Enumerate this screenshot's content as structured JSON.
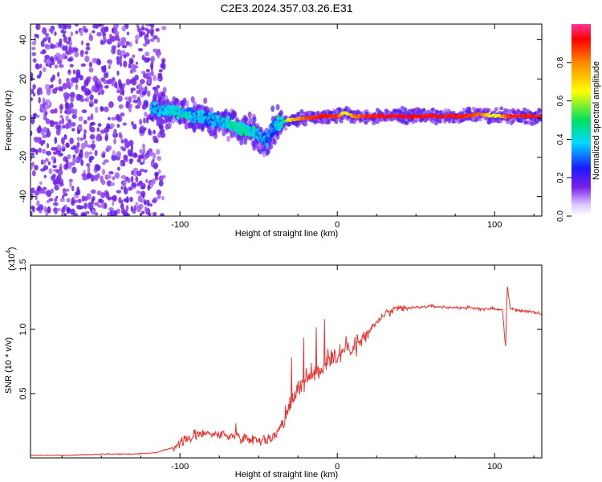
{
  "title": "C2E3.2024.357.03.26.E31",
  "chart_data": [
    {
      "type": "heatmap",
      "xlabel": "Height of straight line (km)",
      "ylabel": "Frequency (Hz)",
      "xlim": [
        -195,
        130
      ],
      "ylim": [
        -50,
        48
      ],
      "xticks": [
        -100,
        0,
        100
      ],
      "yticks": [
        -40,
        -20,
        0,
        20,
        40
      ],
      "colorbar": {
        "label": "Normalized spectral amplitude",
        "range": [
          0.0,
          1.0
        ],
        "ticks": [
          0.0,
          0.2,
          0.4,
          0.6,
          0.8
        ],
        "tick_labels": [
          "0.0",
          "0.2",
          "0.4",
          "0.6",
          "0.8"
        ]
      },
      "ridge": {
        "x": [
          -115,
          -100,
          -90,
          -80,
          -70,
          -60,
          -50,
          -45,
          -40,
          -35,
          -30,
          -20,
          -10,
          0,
          5,
          10,
          20,
          40,
          60,
          80,
          90,
          100,
          110,
          130
        ],
        "freq_hz": [
          5,
          3,
          1,
          -1,
          -3,
          -5,
          -9,
          -12,
          -4,
          -2,
          -1,
          0,
          1,
          1,
          3,
          1,
          1,
          1,
          1,
          1,
          2,
          1,
          1,
          1
        ],
        "amplitude": [
          0.35,
          0.4,
          0.35,
          0.35,
          0.4,
          0.45,
          0.35,
          0.3,
          0.35,
          0.4,
          0.7,
          0.85,
          0.9,
          0.9,
          0.6,
          0.8,
          0.9,
          0.92,
          0.9,
          0.9,
          0.85,
          0.6,
          0.9,
          0.9
        ]
      },
      "noise_region": {
        "x_range": [
          -195,
          -110
        ],
        "amplitude": 0.1
      }
    },
    {
      "type": "line",
      "xlabel": "Height of straight line (km)",
      "ylabel": "SNR (10 * v/v)",
      "y_scale_label": "(x10",
      "y_scale_exponent": "4",
      "xlim": [
        -195,
        130
      ],
      "ylim": [
        0,
        1.5
      ],
      "xticks": [
        -100,
        0,
        100
      ],
      "yticks": [
        0.5,
        1.0,
        1.5
      ],
      "ytick_labels": [
        "0.5",
        "1.0",
        "1.5"
      ],
      "series": [
        {
          "name": "SNR",
          "color": "#ee3333",
          "x": [
            -195,
            -170,
            -150,
            -130,
            -115,
            -105,
            -95,
            -85,
            -75,
            -65,
            -55,
            -45,
            -40,
            -32,
            -25,
            -20,
            -15,
            -10,
            -5,
            0,
            5,
            10,
            15,
            20,
            30,
            40,
            50,
            60,
            70,
            80,
            90,
            100,
            105,
            107,
            108,
            110,
            120,
            130
          ],
          "y": [
            0.02,
            0.02,
            0.03,
            0.03,
            0.04,
            0.08,
            0.15,
            0.2,
            0.18,
            0.17,
            0.15,
            0.14,
            0.16,
            0.35,
            0.55,
            0.6,
            0.65,
            0.7,
            0.78,
            0.8,
            0.85,
            0.88,
            0.9,
            0.98,
            1.12,
            1.16,
            1.17,
            1.18,
            1.17,
            1.17,
            1.16,
            1.16,
            1.15,
            0.85,
            1.35,
            1.16,
            1.14,
            1.12
          ]
        }
      ]
    }
  ]
}
